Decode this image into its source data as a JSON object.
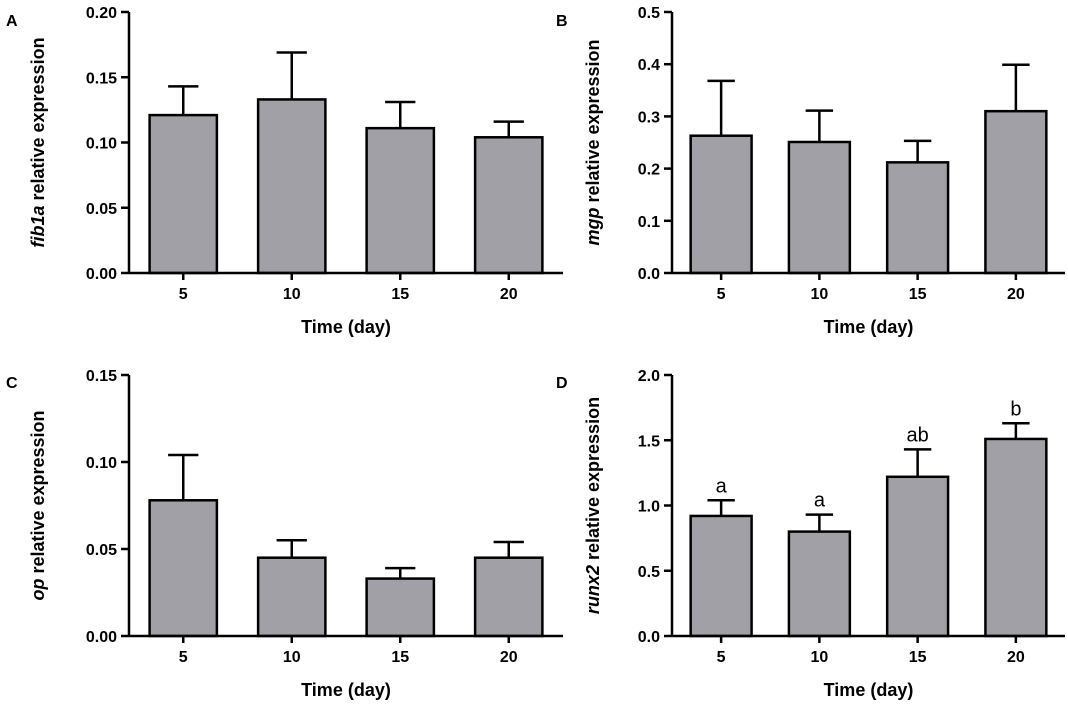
{
  "colors": {
    "bar_fill": "#a0a0a6",
    "stroke": "#000000",
    "background": "#ffffff"
  },
  "chart_data": [
    {
      "panel": "A",
      "type": "bar",
      "categories": [
        "5",
        "10",
        "15",
        "20"
      ],
      "values": [
        0.121,
        0.133,
        0.111,
        0.104
      ],
      "error": [
        0.022,
        0.036,
        0.02,
        0.012
      ],
      "significance": [],
      "xlabel": "Time (day)",
      "ylabel_italic": "fib1a",
      "ylabel_rest": " relative expression",
      "ylim": [
        0,
        0.2
      ],
      "yticks": [
        "0.00",
        "0.05",
        "0.10",
        "0.15",
        "0.20"
      ]
    },
    {
      "panel": "B",
      "type": "bar",
      "categories": [
        "5",
        "10",
        "15",
        "20"
      ],
      "values": [
        0.263,
        0.251,
        0.212,
        0.31
      ],
      "error": [
        0.105,
        0.06,
        0.041,
        0.089
      ],
      "significance": [],
      "xlabel": "Time (day)",
      "ylabel_italic": "mgp",
      "ylabel_rest": " relative expression",
      "ylim": [
        0,
        0.5
      ],
      "yticks": [
        "0.0",
        "0.1",
        "0.2",
        "0.3",
        "0.4",
        "0.5"
      ]
    },
    {
      "panel": "C",
      "type": "bar",
      "categories": [
        "5",
        "10",
        "15",
        "20"
      ],
      "values": [
        0.078,
        0.045,
        0.033,
        0.045
      ],
      "error": [
        0.026,
        0.01,
        0.006,
        0.009
      ],
      "significance": [],
      "xlabel": "Time (day)",
      "ylabel_italic": "op",
      "ylabel_rest": " relative expression",
      "ylim": [
        0,
        0.15
      ],
      "yticks": [
        "0.00",
        "0.05",
        "0.10",
        "0.15"
      ]
    },
    {
      "panel": "D",
      "type": "bar",
      "categories": [
        "5",
        "10",
        "15",
        "20"
      ],
      "values": [
        0.92,
        0.8,
        1.22,
        1.51
      ],
      "error": [
        0.12,
        0.13,
        0.21,
        0.12
      ],
      "significance": [
        "a",
        "a",
        "ab",
        "b"
      ],
      "xlabel": "Time (day)",
      "ylabel_italic": "runx2",
      "ylabel_rest": " relative expression",
      "ylim": [
        0,
        2.0
      ],
      "yticks": [
        "0.0",
        "0.5",
        "1.0",
        "1.5",
        "2.0"
      ]
    }
  ]
}
